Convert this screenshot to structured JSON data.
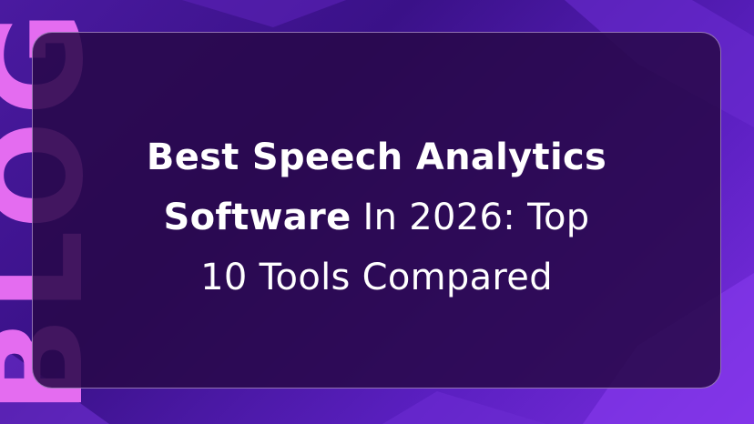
{
  "background_word": "BLOG",
  "title": {
    "line1_bold": "Best Speech Analytics",
    "line2_bold": "Software",
    "line2_regular": "In 2026: Top",
    "line3_regular": "10 Tools Compared"
  }
}
